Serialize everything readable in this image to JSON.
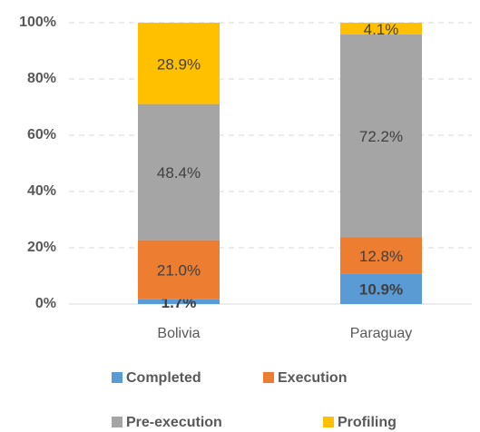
{
  "chart_data": {
    "type": "stacked_bar",
    "categories": [
      "Bolivia",
      "Paraguay"
    ],
    "series": [
      {
        "name": "Completed",
        "color": "#5b9bd5",
        "values": [
          1.7,
          10.9
        ],
        "value_labels": [
          "1.7%",
          "10.9%"
        ]
      },
      {
        "name": "Execution",
        "color": "#ed7d31",
        "values": [
          21.0,
          12.8
        ],
        "value_labels": [
          "21.0%",
          "12.8%"
        ]
      },
      {
        "name": "Pre-execution",
        "color": "#a5a5a5",
        "values": [
          48.4,
          72.2
        ],
        "value_labels": [
          "48.4%",
          "72.2%"
        ]
      },
      {
        "name": "Profiling",
        "color": "#ffc000",
        "values": [
          28.9,
          4.1
        ],
        "value_labels": [
          "28.9%",
          "4.1%"
        ]
      }
    ],
    "ylim": [
      0,
      100
    ],
    "yticks": [
      {
        "value": 0,
        "label": "0%"
      },
      {
        "value": 20,
        "label": "20%"
      },
      {
        "value": 40,
        "label": "40%"
      },
      {
        "value": 60,
        "label": "60%"
      },
      {
        "value": 80,
        "label": "80%"
      },
      {
        "value": 100,
        "label": "100%"
      }
    ],
    "grid": true,
    "legend": "bottom"
  }
}
